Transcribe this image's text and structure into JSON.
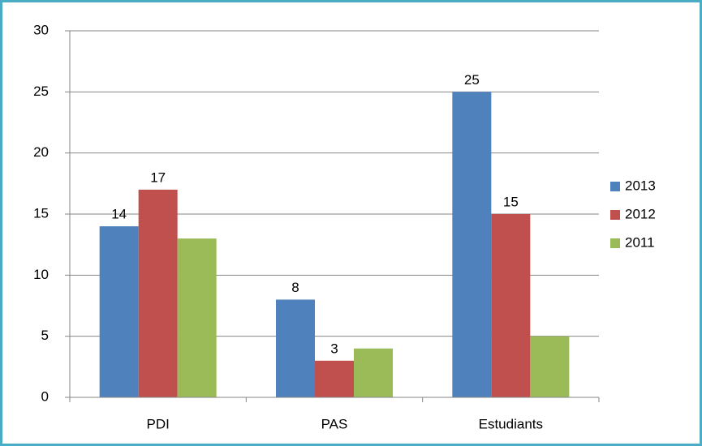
{
  "chart_data": {
    "type": "bar",
    "categories": [
      "PDI",
      "PAS",
      "Estudiants"
    ],
    "series": [
      {
        "name": "2013",
        "color": "#4f81bd",
        "values": [
          14,
          8,
          25
        ],
        "data_labels": true
      },
      {
        "name": "2012",
        "color": "#c0504d",
        "values": [
          17,
          3,
          15
        ],
        "data_labels": true
      },
      {
        "name": "2011",
        "color": "#9bbb59",
        "values": [
          13,
          4,
          5
        ],
        "data_labels": false
      }
    ],
    "ylim": [
      0,
      30
    ],
    "yticks": [
      0,
      5,
      10,
      15,
      20,
      25,
      30
    ],
    "grid": true,
    "legend": "right"
  }
}
